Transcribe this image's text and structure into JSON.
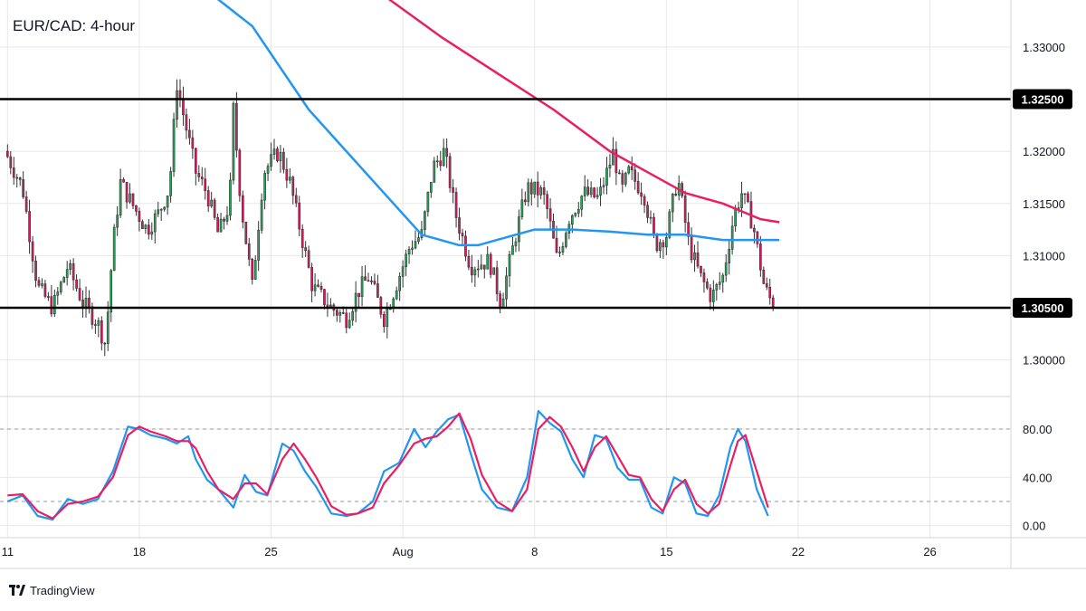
{
  "chart_data": [
    {
      "type": "candlestick",
      "title": "EUR/CAD: 4-hour",
      "y_ticks": [
        1.3,
        1.305,
        1.31,
        1.315,
        1.32,
        1.325,
        1.33
      ],
      "y_tick_labels": [
        "1.30000",
        "",
        "1.31000",
        "1.31500",
        "1.32000",
        "",
        "1.33000"
      ],
      "ylim": [
        1.2965,
        1.3345
      ],
      "x_ticks": [
        {
          "day": 11,
          "label": "11"
        },
        {
          "day": 18,
          "label": "18"
        },
        {
          "day": 25,
          "label": "25"
        },
        {
          "day": 32,
          "label": "Aug"
        },
        {
          "day": 39,
          "label": "8"
        },
        {
          "day": 46,
          "label": "15"
        },
        {
          "day": 53,
          "label": "22"
        },
        {
          "day": 60,
          "label": "26"
        }
      ],
      "xlim": [
        10.6,
        64.3
      ],
      "levels": [
        {
          "value": 1.325,
          "label": "1.32500"
        },
        {
          "value": 1.305,
          "label": "1.30500"
        }
      ],
      "close_anchors": [
        [
          11.0,
          1.3195
        ],
        [
          11.8,
          1.3165
        ],
        [
          12.6,
          1.307
        ],
        [
          13.4,
          1.305
        ],
        [
          14.2,
          1.309
        ],
        [
          15.0,
          1.3055
        ],
        [
          15.8,
          1.3035
        ],
        [
          16.2,
          1.3015
        ],
        [
          16.6,
          1.311
        ],
        [
          17.0,
          1.317
        ],
        [
          17.6,
          1.315
        ],
        [
          18.4,
          1.3125
        ],
        [
          19.0,
          1.314
        ],
        [
          19.6,
          1.3165
        ],
        [
          20.0,
          1.3265
        ],
        [
          20.4,
          1.323
        ],
        [
          21.0,
          1.318
        ],
        [
          21.6,
          1.316
        ],
        [
          22.2,
          1.312
        ],
        [
          22.8,
          1.315
        ],
        [
          23.0,
          1.324
        ],
        [
          23.4,
          1.315
        ],
        [
          24.0,
          1.307
        ],
        [
          24.6,
          1.318
        ],
        [
          25.4,
          1.32
        ],
        [
          26.0,
          1.317
        ],
        [
          26.6,
          1.312
        ],
        [
          27.2,
          1.307
        ],
        [
          28.2,
          1.305
        ],
        [
          29.0,
          1.304
        ],
        [
          29.6,
          1.3065
        ],
        [
          30.2,
          1.308
        ],
        [
          31.0,
          1.304
        ],
        [
          31.6,
          1.307
        ],
        [
          32.4,
          1.311
        ],
        [
          33.0,
          1.312
        ],
        [
          33.6,
          1.3185
        ],
        [
          34.2,
          1.32
        ],
        [
          34.8,
          1.314
        ],
        [
          35.6,
          1.309
        ],
        [
          36.6,
          1.3095
        ],
        [
          37.2,
          1.3055
        ],
        [
          38.0,
          1.312
        ],
        [
          38.6,
          1.3165
        ],
        [
          39.4,
          1.316
        ],
        [
          39.6,
          1.315
        ],
        [
          40.2,
          1.3095
        ],
        [
          40.8,
          1.3135
        ],
        [
          41.6,
          1.316
        ],
        [
          42.4,
          1.3155
        ],
        [
          43.2,
          1.32
        ],
        [
          43.6,
          1.316
        ],
        [
          44.0,
          1.318
        ],
        [
          44.8,
          1.316
        ],
        [
          45.4,
          1.311
        ],
        [
          46.0,
          1.312
        ],
        [
          46.6,
          1.3175
        ],
        [
          47.2,
          1.311
        ],
        [
          47.8,
          1.308
        ],
        [
          48.4,
          1.306
        ],
        [
          49.0,
          1.308
        ],
        [
          49.6,
          1.314
        ],
        [
          50.0,
          1.316
        ],
        [
          50.6,
          1.313
        ],
        [
          51.2,
          1.307
        ],
        [
          51.6,
          1.3055
        ],
        [
          51.8,
          1.3058
        ]
      ],
      "ma_series": [
        {
          "color": "#e91e63",
          "points": [
            [
              25.4,
              1.343
            ],
            [
              30.0,
              1.337
            ],
            [
              34.0,
              1.331
            ],
            [
              37.0,
              1.3275
            ],
            [
              40.0,
              1.324
            ],
            [
              43.0,
              1.32
            ],
            [
              45.0,
              1.318
            ],
            [
              47.0,
              1.316
            ],
            [
              49.0,
              1.315
            ],
            [
              51.0,
              1.3135
            ],
            [
              52.0,
              1.3132
            ]
          ]
        },
        {
          "color": "#2196f3",
          "points": [
            [
              21.0,
              1.34
            ],
            [
              24.0,
              1.332
            ],
            [
              27.0,
              1.324
            ],
            [
              30.0,
              1.318
            ],
            [
              33.0,
              1.312
            ],
            [
              34.0,
              1.3115
            ],
            [
              35.0,
              1.311
            ],
            [
              36.0,
              1.311
            ],
            [
              37.0,
              1.3115
            ],
            [
              38.0,
              1.312
            ],
            [
              39.0,
              1.3125
            ],
            [
              41.0,
              1.3125
            ],
            [
              43.0,
              1.3123
            ],
            [
              45.0,
              1.312
            ],
            [
              47.0,
              1.312
            ],
            [
              49.0,
              1.3115
            ],
            [
              51.0,
              1.3115
            ],
            [
              52.0,
              1.3115
            ]
          ]
        }
      ],
      "colors": {
        "up": "#26a65b",
        "down": "#d81b60",
        "level": "#000000",
        "grid": "#e8e8e8"
      }
    },
    {
      "type": "line",
      "y_ticks": [
        0,
        40,
        80
      ],
      "y_tick_labels": [
        "0.00",
        "40.00",
        "80.00"
      ],
      "ylim": [
        -10,
        107
      ],
      "reference_lines": [
        80,
        20
      ],
      "series": [
        {
          "color": "#2196f3",
          "points": [
            [
              11.0,
              20
            ],
            [
              11.8,
              25
            ],
            [
              12.6,
              8
            ],
            [
              13.4,
              5
            ],
            [
              14.2,
              22
            ],
            [
              15.0,
              18
            ],
            [
              15.8,
              22
            ],
            [
              16.6,
              45
            ],
            [
              17.4,
              82
            ],
            [
              18.0,
              80
            ],
            [
              18.6,
              75
            ],
            [
              19.4,
              72
            ],
            [
              20.0,
              68
            ],
            [
              20.6,
              74
            ],
            [
              21.0,
              55
            ],
            [
              21.6,
              38
            ],
            [
              22.2,
              30
            ],
            [
              23.0,
              15
            ],
            [
              23.6,
              42
            ],
            [
              24.2,
              28
            ],
            [
              24.8,
              25
            ],
            [
              25.6,
              68
            ],
            [
              26.2,
              62
            ],
            [
              26.8,
              45
            ],
            [
              27.4,
              32
            ],
            [
              28.2,
              10
            ],
            [
              29.0,
              8
            ],
            [
              29.6,
              10
            ],
            [
              30.4,
              20
            ],
            [
              31.0,
              45
            ],
            [
              31.8,
              52
            ],
            [
              32.6,
              80
            ],
            [
              33.2,
              65
            ],
            [
              33.8,
              78
            ],
            [
              34.4,
              88
            ],
            [
              35.0,
              92
            ],
            [
              35.6,
              60
            ],
            [
              36.2,
              30
            ],
            [
              37.0,
              15
            ],
            [
              37.8,
              12
            ],
            [
              38.6,
              40
            ],
            [
              39.2,
              95
            ],
            [
              39.8,
              85
            ],
            [
              40.4,
              78
            ],
            [
              41.0,
              55
            ],
            [
              41.6,
              40
            ],
            [
              42.2,
              75
            ],
            [
              42.8,
              72
            ],
            [
              43.4,
              48
            ],
            [
              44.0,
              38
            ],
            [
              44.6,
              38
            ],
            [
              45.2,
              15
            ],
            [
              45.8,
              10
            ],
            [
              46.4,
              40
            ],
            [
              47.0,
              35
            ],
            [
              47.6,
              10
            ],
            [
              48.2,
              8
            ],
            [
              48.8,
              25
            ],
            [
              49.4,
              65
            ],
            [
              49.8,
              80
            ],
            [
              50.2,
              70
            ],
            [
              50.8,
              30
            ],
            [
              51.4,
              8
            ]
          ]
        },
        {
          "color": "#e91e63",
          "points": [
            [
              11.0,
              25
            ],
            [
              11.8,
              26
            ],
            [
              12.6,
              12
            ],
            [
              13.4,
              6
            ],
            [
              14.2,
              18
            ],
            [
              15.0,
              20
            ],
            [
              15.8,
              24
            ],
            [
              16.6,
              40
            ],
            [
              17.4,
              75
            ],
            [
              18.0,
              82
            ],
            [
              18.6,
              78
            ],
            [
              19.4,
              74
            ],
            [
              20.0,
              70
            ],
            [
              20.6,
              70
            ],
            [
              21.0,
              64
            ],
            [
              21.6,
              45
            ],
            [
              22.2,
              30
            ],
            [
              23.0,
              22
            ],
            [
              23.6,
              35
            ],
            [
              24.2,
              35
            ],
            [
              24.8,
              26
            ],
            [
              25.6,
              55
            ],
            [
              26.2,
              68
            ],
            [
              26.8,
              55
            ],
            [
              27.4,
              40
            ],
            [
              28.2,
              16
            ],
            [
              29.0,
              9
            ],
            [
              29.6,
              10
            ],
            [
              30.4,
              15
            ],
            [
              31.0,
              35
            ],
            [
              31.8,
              50
            ],
            [
              32.6,
              68
            ],
            [
              33.2,
              72
            ],
            [
              33.8,
              74
            ],
            [
              34.4,
              82
            ],
            [
              35.0,
              93
            ],
            [
              35.6,
              72
            ],
            [
              36.2,
              42
            ],
            [
              37.0,
              20
            ],
            [
              37.8,
              12
            ],
            [
              38.6,
              30
            ],
            [
              39.2,
              80
            ],
            [
              39.8,
              90
            ],
            [
              40.4,
              82
            ],
            [
              41.0,
              65
            ],
            [
              41.6,
              45
            ],
            [
              42.2,
              65
            ],
            [
              42.8,
              74
            ],
            [
              43.4,
              58
            ],
            [
              44.0,
              42
            ],
            [
              44.6,
              40
            ],
            [
              45.2,
              22
            ],
            [
              45.8,
              12
            ],
            [
              46.4,
              30
            ],
            [
              47.0,
              38
            ],
            [
              47.6,
              18
            ],
            [
              48.2,
              10
            ],
            [
              48.8,
              18
            ],
            [
              49.4,
              50
            ],
            [
              49.8,
              70
            ],
            [
              50.2,
              75
            ],
            [
              50.8,
              45
            ],
            [
              51.4,
              15
            ]
          ]
        }
      ],
      "colors": {
        "ref": "#9a9a9a"
      }
    }
  ],
  "footer": {
    "brand": "TradingView"
  }
}
